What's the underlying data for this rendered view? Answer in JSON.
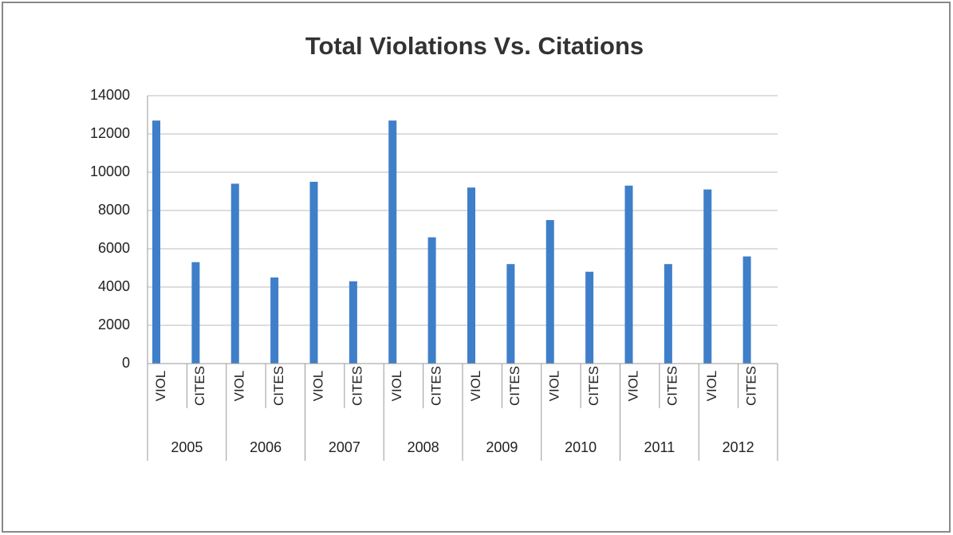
{
  "chart_data": {
    "type": "bar",
    "title": "Total Violations Vs. Citations",
    "categories": [
      "VIOL",
      "CITES",
      "VIOL",
      "CITES",
      "VIOL",
      "CITES",
      "VIOL",
      "CITES",
      "VIOL",
      "CITES",
      "VIOL",
      "CITES",
      "VIOL",
      "CITES",
      "VIOL",
      "CITES"
    ],
    "groups": [
      "2005",
      "2006",
      "2007",
      "2008",
      "2009",
      "2010",
      "2011",
      "2012"
    ],
    "values": [
      12700,
      5300,
      9400,
      4500,
      9500,
      4300,
      12700,
      6600,
      9200,
      5200,
      7500,
      4800,
      9300,
      5200,
      9100,
      5600
    ],
    "color": "#3f7fc9",
    "ylim": [
      0,
      14000
    ],
    "yticks": [
      0,
      2000,
      4000,
      6000,
      8000,
      10000,
      12000,
      14000
    ],
    "grid": true
  }
}
